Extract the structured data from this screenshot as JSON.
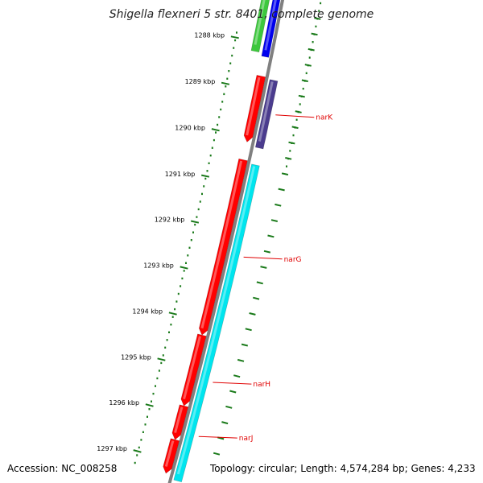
{
  "title": "Shigella flexneri 5 str. 8401, complete genome",
  "colors": {
    "backbone": "#808080",
    "ticks": "#1a7a1a",
    "forward_gene": "#ff0000",
    "reverse_gene": "#00e5ee",
    "gene_label": "#e00000",
    "purple_gene": "#4b3c8e",
    "blue_gene": "#0000ee",
    "green_gene": "#3cc83c"
  },
  "scale_labels": [
    "1288 kbp",
    "1289 kbp",
    "1290 kbp",
    "1291 kbp",
    "1292 kbp",
    "1293 kbp",
    "1294 kbp",
    "1295 kbp",
    "1296 kbp",
    "1297 kbp"
  ],
  "gene_labels": [
    {
      "name": "narK",
      "start_kbp": 1289.43
    },
    {
      "name": "narG",
      "start_kbp": 1292.49
    },
    {
      "name": "narH",
      "start_kbp": 1295.2
    },
    {
      "name": "narJ",
      "start_kbp": 1296.37
    }
  ],
  "footer": {
    "accession": "Accession: NC_008258",
    "info": "Topology: circular; Length: 4,574,284 bp; Genes: 4,233"
  }
}
